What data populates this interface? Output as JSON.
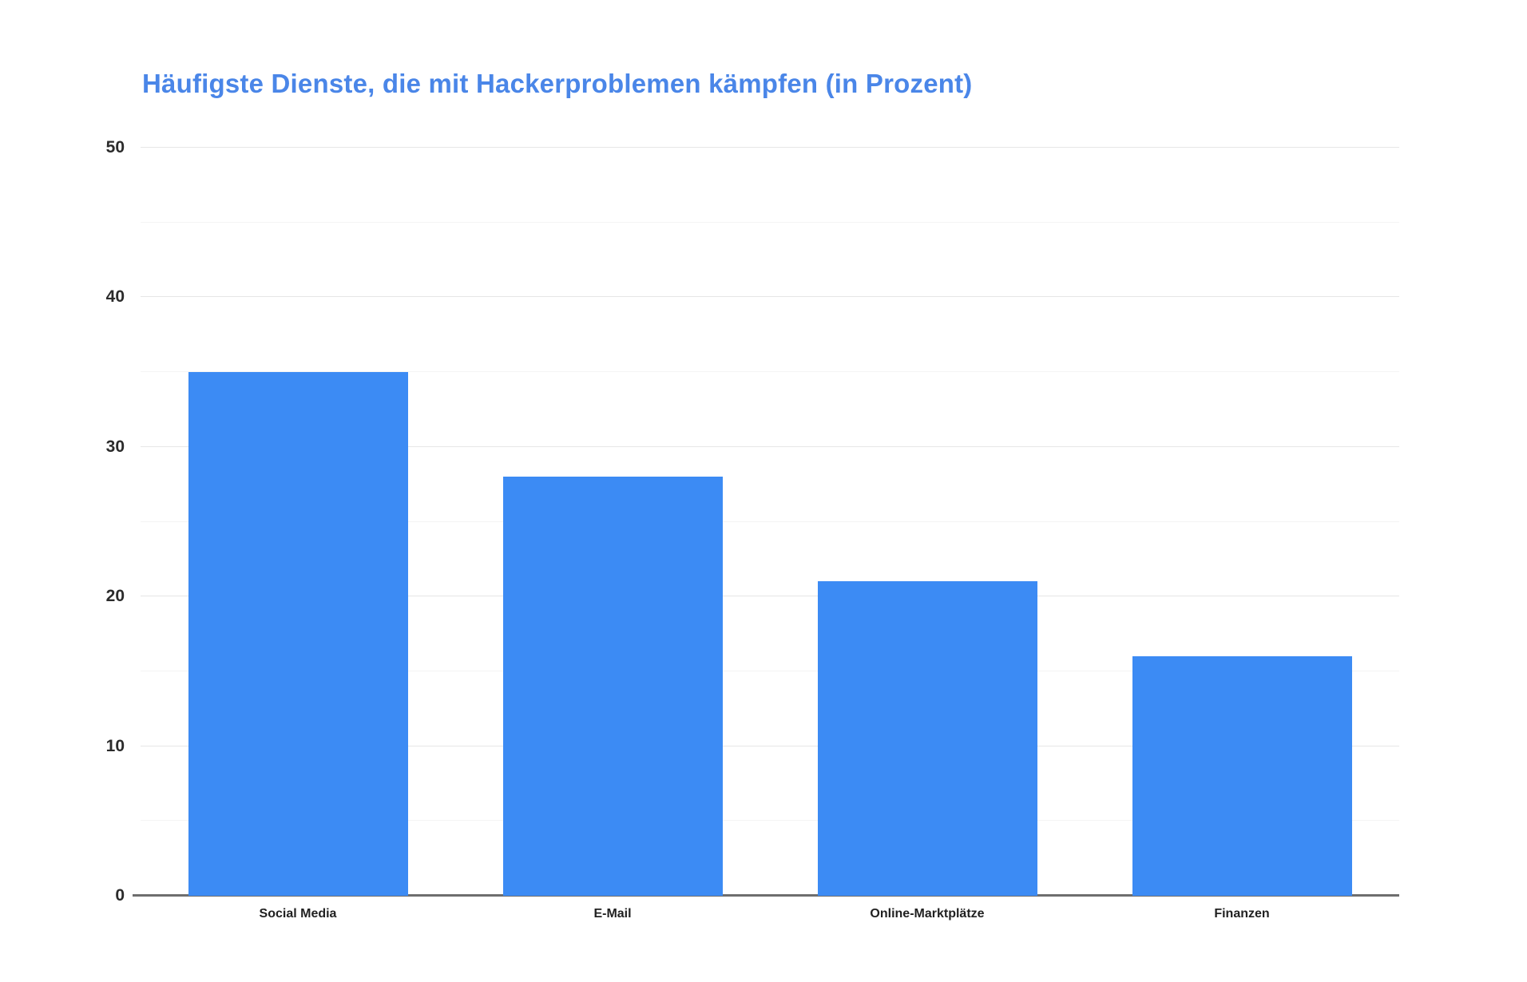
{
  "chart_data": {
    "type": "bar",
    "title": "Häufigste Dienste, die mit Hackerproblemen kämpfen (in Prozent)",
    "categories": [
      "Social Media",
      "E-Mail",
      "Online-Marktplätze",
      "Finanzen"
    ],
    "values": [
      35,
      28,
      21,
      16
    ],
    "xlabel": "",
    "ylabel": "",
    "ylim": [
      0,
      50
    ],
    "yticks": [
      0,
      10,
      20,
      30,
      40,
      50
    ],
    "minor_gridlines_every": 5,
    "grid": "horizontal",
    "legend": "none",
    "bar_color": "#3c8bf4",
    "title_color": "#4a86e8"
  }
}
